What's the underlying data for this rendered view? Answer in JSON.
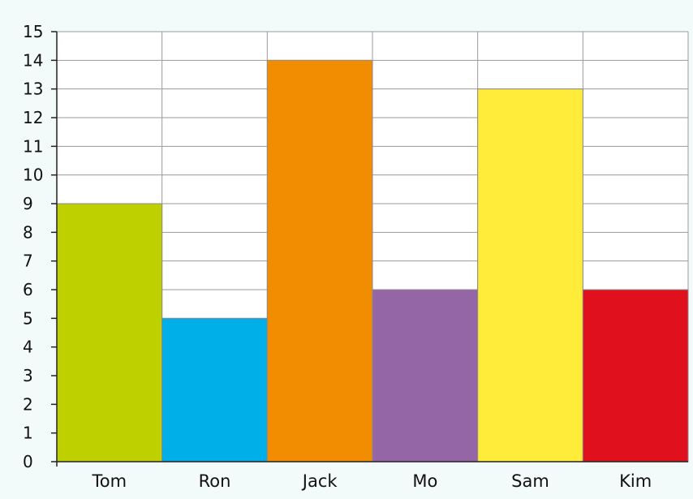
{
  "chart_data": {
    "type": "bar",
    "title": "",
    "xlabel": "",
    "ylabel": "",
    "categories": [
      "Tom",
      "Ron",
      "Jack",
      "Mo",
      "Sam",
      "Kim"
    ],
    "values": [
      9,
      5,
      14,
      6,
      13,
      6
    ],
    "colors": [
      "#bed000",
      "#00aee8",
      "#f28c00",
      "#9566a6",
      "#ffec3a",
      "#e1101d"
    ],
    "ylim": [
      0,
      15
    ],
    "yticks": [
      0,
      1,
      2,
      3,
      4,
      5,
      6,
      7,
      8,
      9,
      10,
      11,
      12,
      13,
      14,
      15
    ],
    "grid": true,
    "legend": "none"
  }
}
